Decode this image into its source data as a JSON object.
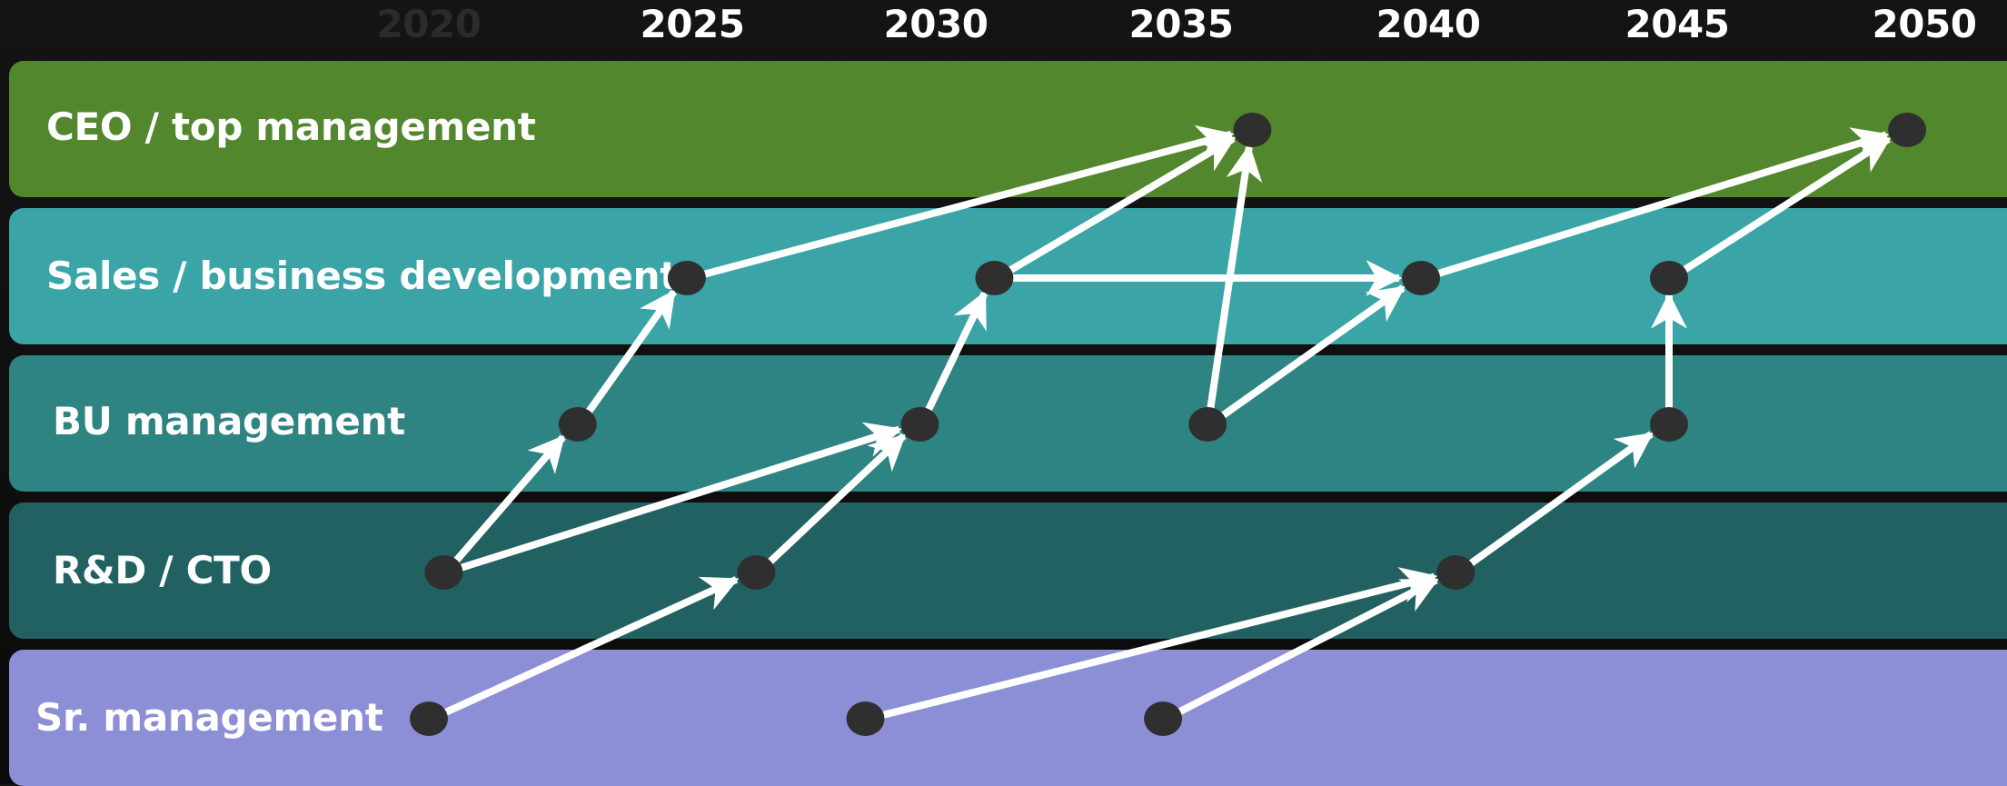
{
  "timeline": {
    "years": [
      "2020",
      "2025",
      "2030",
      "2035",
      "2040",
      "2045",
      "2050"
    ],
    "faded": [
      true,
      false,
      false,
      false,
      false,
      false,
      false
    ]
  },
  "lanes": [
    {
      "label": "CEO / top management",
      "color": "#52872e"
    },
    {
      "label": "Sales / business development",
      "color": "#3aa4a6"
    },
    {
      "label": "BU management",
      "color": "#2e8383"
    },
    {
      "label": "R&D / CTO",
      "color": "#226161"
    },
    {
      "label": "Sr. management",
      "color": "#8d8fd6"
    }
  ],
  "milestones": [
    {
      "id": "sr1",
      "lane": 4,
      "time": 2020.0
    },
    {
      "id": "sr2",
      "lane": 4,
      "time": 2028.8
    },
    {
      "id": "sr3",
      "lane": 4,
      "time": 2034.8
    },
    {
      "id": "rd1",
      "lane": 3,
      "time": 2020.3
    },
    {
      "id": "rd2",
      "lane": 3,
      "time": 2026.6
    },
    {
      "id": "rd3",
      "lane": 3,
      "time": 2040.7
    },
    {
      "id": "bu1",
      "lane": 2,
      "time": 2023.0
    },
    {
      "id": "bu2",
      "lane": 2,
      "time": 2029.9
    },
    {
      "id": "bu3",
      "lane": 2,
      "time": 2035.7
    },
    {
      "id": "bu4",
      "lane": 2,
      "time": 2045.0
    },
    {
      "id": "sb1",
      "lane": 1,
      "time": 2025.2
    },
    {
      "id": "sb2",
      "lane": 1,
      "time": 2031.4
    },
    {
      "id": "sb3",
      "lane": 1,
      "time": 2040.0
    },
    {
      "id": "sb4",
      "lane": 1,
      "time": 2045.0
    },
    {
      "id": "ceo1",
      "lane": 0,
      "time": 2036.6
    },
    {
      "id": "ceo2",
      "lane": 0,
      "time": 2049.8
    }
  ],
  "links": [
    [
      "rd1",
      "bu1"
    ],
    [
      "rd1",
      "bu2"
    ],
    [
      "bu1",
      "sb1"
    ],
    [
      "sb1",
      "ceo1"
    ],
    [
      "sr1",
      "rd2"
    ],
    [
      "rd2",
      "bu2"
    ],
    [
      "bu2",
      "sb2"
    ],
    [
      "sb2",
      "ceo1"
    ],
    [
      "sb2",
      "sb3"
    ],
    [
      "bu3",
      "ceo1"
    ],
    [
      "bu3",
      "sb3"
    ],
    [
      "sb3",
      "ceo2"
    ],
    [
      "sr2",
      "rd3"
    ],
    [
      "sr3",
      "rd3"
    ],
    [
      "rd3",
      "bu4"
    ],
    [
      "bu4",
      "sb4"
    ],
    [
      "sb4",
      "ceo2"
    ]
  ],
  "colors": {
    "node": "#2f2f2f",
    "arrow": "#ffffff"
  }
}
